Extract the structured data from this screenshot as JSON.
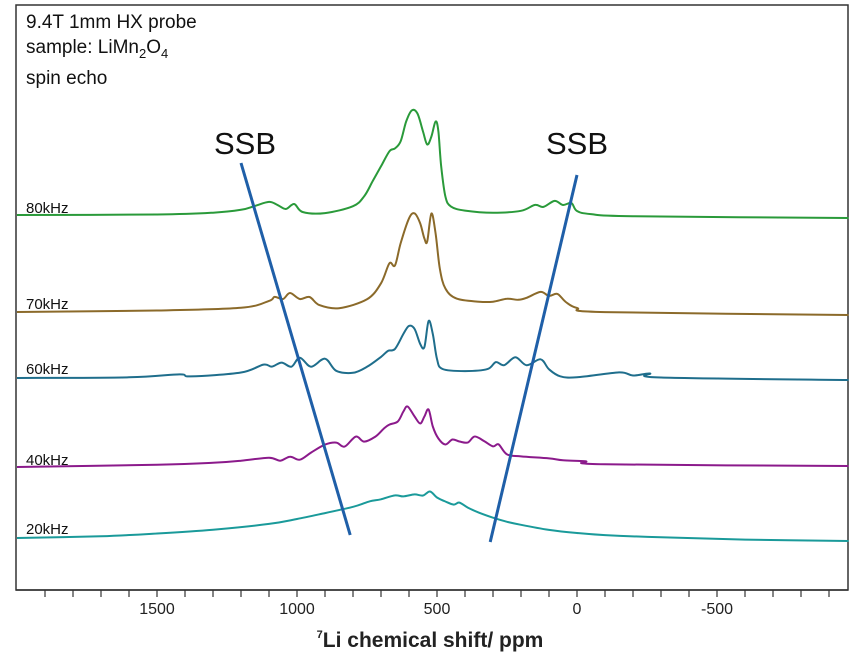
{
  "chart_data": {
    "type": "line",
    "title": "",
    "notes": [
      "9.4T 1mm HX probe",
      "sample: LiMn",
      "2",
      "O",
      "4",
      "spin echo"
    ],
    "xlabel_sup": "7",
    "xlabel": "Li chemical shift/ ppm",
    "ylabel": "",
    "xlim": [
      2000,
      -970
    ],
    "x_reversed": true,
    "xticks": [
      1500,
      1000,
      500,
      0,
      -500
    ],
    "xtick_labels": [
      "1500",
      "1000",
      "500",
      "0",
      "-500"
    ],
    "minor_tick_step": 100,
    "grid": false,
    "legend": "none",
    "series": [
      {
        "name": "80kHz",
        "color": "#2a9a3a",
        "points": [
          [
            2000,
            0
          ],
          [
            1500,
            1
          ],
          [
            1300,
            3
          ],
          [
            1200,
            6
          ],
          [
            1150,
            10
          ],
          [
            1100,
            14
          ],
          [
            1070,
            11
          ],
          [
            1040,
            7
          ],
          [
            1010,
            12
          ],
          [
            980,
            4
          ],
          [
            900,
            3
          ],
          [
            800,
            10
          ],
          [
            760,
            20
          ],
          [
            730,
            35
          ],
          [
            700,
            50
          ],
          [
            670,
            65
          ],
          [
            650,
            68
          ],
          [
            630,
            75
          ],
          [
            610,
            95
          ],
          [
            590,
            106
          ],
          [
            570,
            103
          ],
          [
            550,
            85
          ],
          [
            535,
            72
          ],
          [
            520,
            80
          ],
          [
            505,
            95
          ],
          [
            495,
            85
          ],
          [
            485,
            50
          ],
          [
            470,
            20
          ],
          [
            450,
            10
          ],
          [
            400,
            6
          ],
          [
            300,
            4
          ],
          [
            200,
            6
          ],
          [
            150,
            12
          ],
          [
            120,
            10
          ],
          [
            80,
            16
          ],
          [
            50,
            12
          ],
          [
            20,
            14
          ],
          [
            0,
            6
          ],
          [
            -50,
            3
          ],
          [
            -200,
            1
          ],
          [
            -970,
            0
          ]
        ]
      },
      {
        "name": "70kHz",
        "color": "#8b6a2a",
        "points": [
          [
            2000,
            0
          ],
          [
            1500,
            2
          ],
          [
            1200,
            5
          ],
          [
            1100,
            12
          ],
          [
            1080,
            16
          ],
          [
            1050,
            14
          ],
          [
            1025,
            20
          ],
          [
            990,
            14
          ],
          [
            955,
            16
          ],
          [
            920,
            8
          ],
          [
            850,
            5
          ],
          [
            750,
            14
          ],
          [
            700,
            30
          ],
          [
            670,
            50
          ],
          [
            650,
            48
          ],
          [
            630,
            70
          ],
          [
            600,
            95
          ],
          [
            580,
            100
          ],
          [
            560,
            90
          ],
          [
            545,
            75
          ],
          [
            535,
            72
          ],
          [
            520,
            100
          ],
          [
            505,
            80
          ],
          [
            490,
            45
          ],
          [
            470,
            25
          ],
          [
            430,
            15
          ],
          [
            350,
            12
          ],
          [
            300,
            12
          ],
          [
            250,
            15
          ],
          [
            210,
            14
          ],
          [
            180,
            16
          ],
          [
            130,
            22
          ],
          [
            100,
            18
          ],
          [
            70,
            20
          ],
          [
            40,
            12
          ],
          [
            0,
            6
          ],
          [
            -100,
            2
          ],
          [
            -970,
            0
          ]
        ]
      },
      {
        "name": "60kHz",
        "color": "#1f6e8c",
        "points": [
          [
            2000,
            0
          ],
          [
            1600,
            1
          ],
          [
            1420,
            4
          ],
          [
            1380,
            2
          ],
          [
            1200,
            6
          ],
          [
            1120,
            14
          ],
          [
            1090,
            12
          ],
          [
            1055,
            16
          ],
          [
            1020,
            12
          ],
          [
            990,
            21
          ],
          [
            950,
            12
          ],
          [
            900,
            20
          ],
          [
            860,
            8
          ],
          [
            800,
            6
          ],
          [
            750,
            12
          ],
          [
            700,
            22
          ],
          [
            675,
            28
          ],
          [
            650,
            30
          ],
          [
            620,
            45
          ],
          [
            600,
            53
          ],
          [
            580,
            50
          ],
          [
            560,
            35
          ],
          [
            545,
            32
          ],
          [
            530,
            58
          ],
          [
            515,
            45
          ],
          [
            500,
            20
          ],
          [
            480,
            10
          ],
          [
            400,
            8
          ],
          [
            320,
            10
          ],
          [
            290,
            17
          ],
          [
            260,
            14
          ],
          [
            220,
            22
          ],
          [
            180,
            14
          ],
          [
            130,
            20
          ],
          [
            100,
            10
          ],
          [
            60,
            3
          ],
          [
            0,
            2
          ],
          [
            -150,
            7
          ],
          [
            -200,
            4
          ],
          [
            -260,
            6
          ],
          [
            -300,
            2
          ],
          [
            -970,
            0
          ]
        ]
      },
      {
        "name": "40kHz",
        "color": "#8b1a8b",
        "points": [
          [
            2000,
            0
          ],
          [
            1500,
            2
          ],
          [
            1300,
            4
          ],
          [
            1200,
            6
          ],
          [
            1100,
            9
          ],
          [
            1060,
            6
          ],
          [
            1025,
            10
          ],
          [
            990,
            7
          ],
          [
            950,
            14
          ],
          [
            900,
            22
          ],
          [
            860,
            24
          ],
          [
            830,
            20
          ],
          [
            790,
            30
          ],
          [
            760,
            25
          ],
          [
            720,
            30
          ],
          [
            690,
            38
          ],
          [
            670,
            42
          ],
          [
            640,
            45
          ],
          [
            620,
            55
          ],
          [
            605,
            60
          ],
          [
            580,
            50
          ],
          [
            560,
            43
          ],
          [
            545,
            50
          ],
          [
            530,
            57
          ],
          [
            515,
            40
          ],
          [
            495,
            28
          ],
          [
            470,
            22
          ],
          [
            445,
            27
          ],
          [
            420,
            25
          ],
          [
            390,
            24
          ],
          [
            365,
            30
          ],
          [
            330,
            25
          ],
          [
            300,
            20
          ],
          [
            280,
            22
          ],
          [
            250,
            12
          ],
          [
            200,
            10
          ],
          [
            100,
            8
          ],
          [
            50,
            6
          ],
          [
            -30,
            5
          ],
          [
            -100,
            2
          ],
          [
            -970,
            0
          ]
        ]
      },
      {
        "name": "20kHz",
        "color": "#1a9a9a",
        "points": [
          [
            2000,
            0
          ],
          [
            1700,
            2
          ],
          [
            1500,
            5
          ],
          [
            1300,
            9
          ],
          [
            1100,
            15
          ],
          [
            1000,
            20
          ],
          [
            900,
            26
          ],
          [
            820,
            31
          ],
          [
            780,
            34
          ],
          [
            740,
            38
          ],
          [
            700,
            40
          ],
          [
            650,
            44
          ],
          [
            620,
            43
          ],
          [
            580,
            45
          ],
          [
            550,
            44
          ],
          [
            525,
            48
          ],
          [
            500,
            42
          ],
          [
            470,
            38
          ],
          [
            440,
            35
          ],
          [
            420,
            37
          ],
          [
            390,
            32
          ],
          [
            350,
            27
          ],
          [
            300,
            22
          ],
          [
            250,
            18
          ],
          [
            200,
            15
          ],
          [
            100,
            10
          ],
          [
            0,
            7
          ],
          [
            -100,
            5
          ],
          [
            -300,
            3
          ],
          [
            -600,
            1
          ],
          [
            -970,
            0
          ]
        ]
      }
    ],
    "annotations": [
      {
        "label": "SSB",
        "color": "#1f5fa8",
        "line_ppm_top": 1200,
        "line_ppm_bottom": 810
      },
      {
        "label": "SSB",
        "color": "#1f5fa8",
        "line_ppm_top": 0,
        "line_ppm_bottom": 310
      }
    ]
  }
}
